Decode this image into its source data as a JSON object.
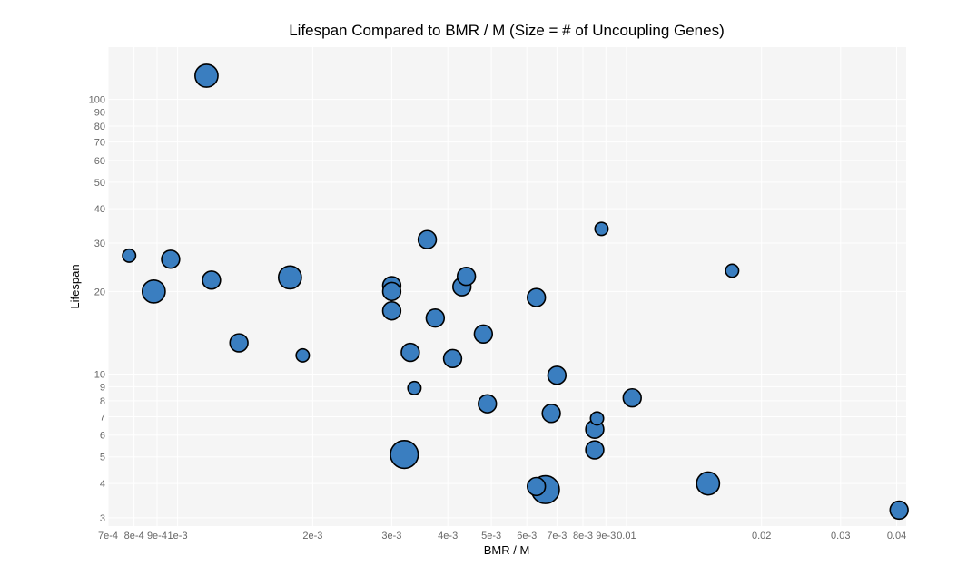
{
  "chart_data": {
    "type": "scatter",
    "title": "Lifespan Compared to BMR / M (Size = # of Uncoupling Genes)",
    "xlabel": "BMR / M",
    "ylabel": "Lifespan",
    "xscale": "log",
    "yscale": "log",
    "xlim": [
      0.0007,
      0.042
    ],
    "ylim": [
      2.8,
      155
    ],
    "grid": true,
    "marker_color": "#3a7ec0",
    "marker_edge_color": "#000000",
    "background_color": "#f5f5f5",
    "grid_color": "#ffffff",
    "x_ticks": [
      {
        "value": 0.0007,
        "label": "7e-4"
      },
      {
        "value": 0.0008,
        "label": "8e-4"
      },
      {
        "value": 0.0009,
        "label": "9e-4"
      },
      {
        "value": 0.001,
        "label": "1e-3"
      },
      {
        "value": 0.002,
        "label": "2e-3"
      },
      {
        "value": 0.003,
        "label": "3e-3"
      },
      {
        "value": 0.004,
        "label": "4e-3"
      },
      {
        "value": 0.005,
        "label": "5e-3"
      },
      {
        "value": 0.006,
        "label": "6e-3"
      },
      {
        "value": 0.007,
        "label": "7e-3"
      },
      {
        "value": 0.008,
        "label": "8e-3"
      },
      {
        "value": 0.009,
        "label": "9e-3"
      },
      {
        "value": 0.01,
        "label": "0.01"
      },
      {
        "value": 0.02,
        "label": "0.02"
      },
      {
        "value": 0.03,
        "label": "0.03"
      },
      {
        "value": 0.04,
        "label": "0.04"
      }
    ],
    "y_ticks": [
      {
        "value": 3,
        "label": "3"
      },
      {
        "value": 4,
        "label": "4"
      },
      {
        "value": 5,
        "label": "5"
      },
      {
        "value": 6,
        "label": "6"
      },
      {
        "value": 7,
        "label": "7"
      },
      {
        "value": 8,
        "label": "8"
      },
      {
        "value": 9,
        "label": "9"
      },
      {
        "value": 10,
        "label": "10"
      },
      {
        "value": 20,
        "label": "20"
      },
      {
        "value": 30,
        "label": "30"
      },
      {
        "value": 40,
        "label": "40"
      },
      {
        "value": 50,
        "label": "50"
      },
      {
        "value": 60,
        "label": "60"
      },
      {
        "value": 70,
        "label": "70"
      },
      {
        "value": 80,
        "label": "80"
      },
      {
        "value": 90,
        "label": "90"
      },
      {
        "value": 100,
        "label": "100"
      }
    ],
    "points": [
      {
        "x": 0.00116,
        "y": 122,
        "size": 3
      },
      {
        "x": 0.00078,
        "y": 27,
        "size": 1
      },
      {
        "x": 0.000885,
        "y": 20,
        "size": 3
      },
      {
        "x": 0.000965,
        "y": 26.2,
        "size": 2
      },
      {
        "x": 0.00119,
        "y": 22,
        "size": 2
      },
      {
        "x": 0.00137,
        "y": 13,
        "size": 2
      },
      {
        "x": 0.00178,
        "y": 22.5,
        "size": 3
      },
      {
        "x": 0.0019,
        "y": 11.7,
        "size": 1
      },
      {
        "x": 0.003,
        "y": 21,
        "size": 2
      },
      {
        "x": 0.003,
        "y": 20,
        "size": 2
      },
      {
        "x": 0.003,
        "y": 17,
        "size": 2
      },
      {
        "x": 0.0032,
        "y": 5.1,
        "size": 4
      },
      {
        "x": 0.0033,
        "y": 12,
        "size": 2
      },
      {
        "x": 0.00337,
        "y": 8.9,
        "size": 1
      },
      {
        "x": 0.0036,
        "y": 30.9,
        "size": 2
      },
      {
        "x": 0.00375,
        "y": 16,
        "size": 2
      },
      {
        "x": 0.0041,
        "y": 11.4,
        "size": 2
      },
      {
        "x": 0.0043,
        "y": 20.8,
        "size": 2
      },
      {
        "x": 0.0044,
        "y": 22.7,
        "size": 2
      },
      {
        "x": 0.0048,
        "y": 14,
        "size": 2
      },
      {
        "x": 0.0049,
        "y": 7.8,
        "size": 2
      },
      {
        "x": 0.0063,
        "y": 19,
        "size": 2
      },
      {
        "x": 0.0063,
        "y": 3.9,
        "size": 2
      },
      {
        "x": 0.0066,
        "y": 3.8,
        "size": 4
      },
      {
        "x": 0.0068,
        "y": 7.2,
        "size": 2
      },
      {
        "x": 0.007,
        "y": 9.9,
        "size": 2
      },
      {
        "x": 0.0085,
        "y": 6.3,
        "size": 2
      },
      {
        "x": 0.0085,
        "y": 5.3,
        "size": 2
      },
      {
        "x": 0.0086,
        "y": 6.9,
        "size": 1
      },
      {
        "x": 0.0088,
        "y": 33.8,
        "size": 1
      },
      {
        "x": 0.0103,
        "y": 8.2,
        "size": 2
      },
      {
        "x": 0.0152,
        "y": 4,
        "size": 3
      },
      {
        "x": 0.0172,
        "y": 23.8,
        "size": 1
      },
      {
        "x": 0.0405,
        "y": 3.2,
        "size": 2
      }
    ]
  }
}
